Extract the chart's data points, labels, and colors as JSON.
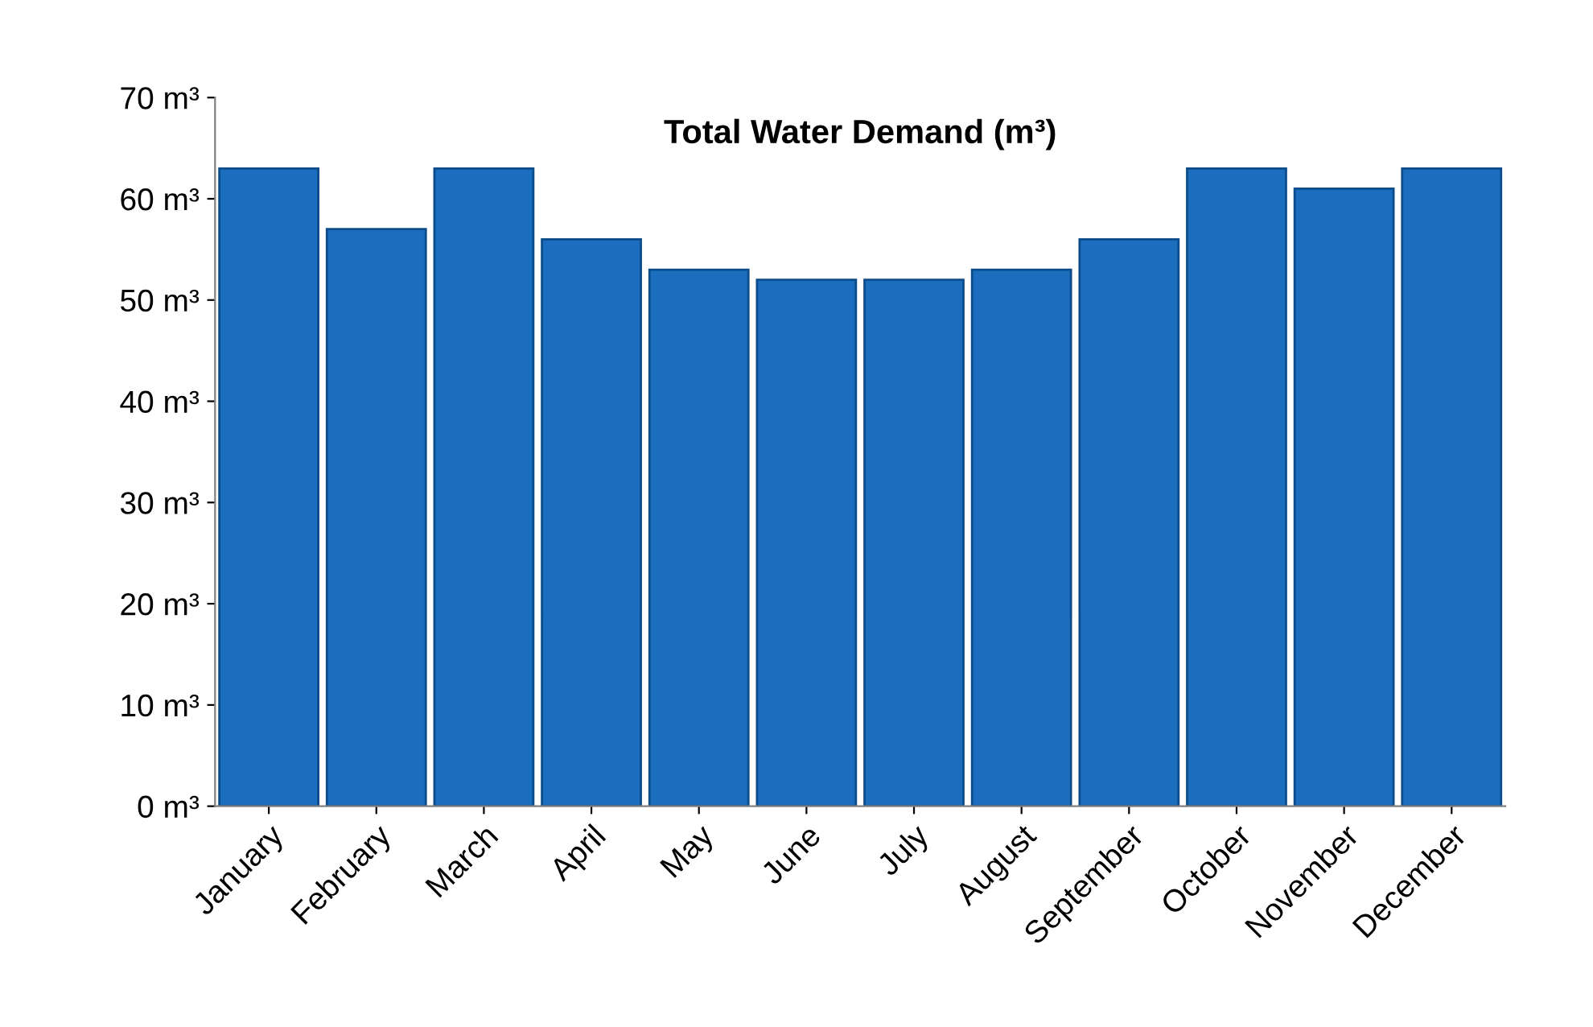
{
  "chart_data": {
    "type": "bar",
    "title": "Total Water Demand (m³)",
    "categories": [
      "January",
      "February",
      "March",
      "April",
      "May",
      "June",
      "July",
      "August",
      "September",
      "October",
      "November",
      "December"
    ],
    "values": [
      63,
      57,
      63,
      56,
      53,
      52,
      52,
      53,
      56,
      63,
      61,
      63
    ],
    "color": "#1a6ebd",
    "ylim": [
      0,
      70
    ],
    "yticks": [
      {
        "value": 0,
        "label": "0 m³"
      },
      {
        "value": 10,
        "label": "10 m³"
      },
      {
        "value": 20,
        "label": "20 m³"
      },
      {
        "value": 30,
        "label": "30 m³"
      },
      {
        "value": 40,
        "label": "40 m³"
      },
      {
        "value": 50,
        "label": "50 m³"
      },
      {
        "value": 60,
        "label": "60 m³"
      },
      {
        "value": 70,
        "label": "70 m³"
      }
    ],
    "grid": false
  }
}
